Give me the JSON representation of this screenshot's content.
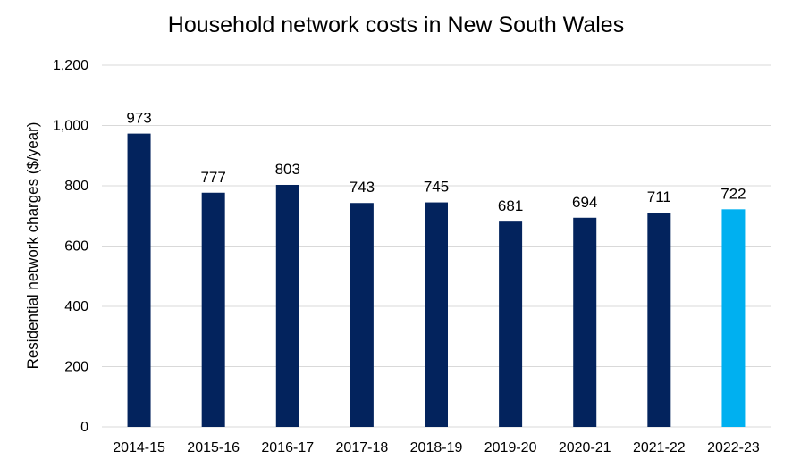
{
  "chart_data": {
    "type": "bar",
    "title": "Household network costs in New South Wales",
    "xlabel": "",
    "ylabel": "Residential network charges ($/year)",
    "categories": [
      "2014-15",
      "2015-16",
      "2016-17",
      "2017-18",
      "2018-19",
      "2019-20",
      "2020-21",
      "2021-22",
      "2022-23"
    ],
    "values": [
      973,
      777,
      803,
      743,
      745,
      681,
      694,
      711,
      722
    ],
    "data_labels": [
      "973",
      "777",
      "803",
      "743",
      "745",
      "681",
      "694",
      "711",
      "722"
    ],
    "ylim": [
      0,
      1200
    ],
    "yticks": [
      0,
      200,
      400,
      600,
      800,
      1000,
      1200
    ],
    "ytick_labels": [
      "0",
      "200",
      "400",
      "600",
      "800",
      "1,000",
      "1,200"
    ],
    "grid": true,
    "legend": "none",
    "colors": {
      "bar": "#03235d",
      "highlight_bar": "#00b0f0",
      "grid": "#d9d9d9"
    },
    "highlight_index": 8
  }
}
